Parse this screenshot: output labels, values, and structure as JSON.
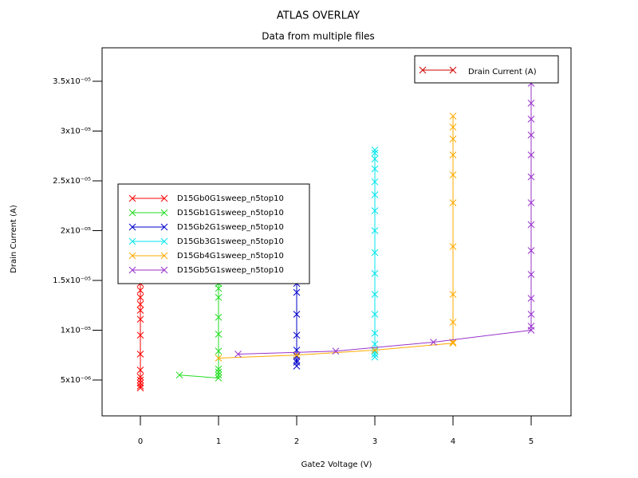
{
  "chart_data": {
    "type": "line",
    "title": "ATLAS OVERLAY",
    "subtitle": "Data from multiple files",
    "x_label": "Gate2 Voltage (V)",
    "y_label": "Drain Current (A)",
    "legend2_label": "Drain Current (A)",
    "legend2_color": "#d00000",
    "xlim": [
      -0.49,
      5.51
    ],
    "ylim": [
      1.4e-06,
      3.836e-05
    ],
    "xticks": [
      0,
      1,
      2,
      3,
      4,
      5
    ],
    "yticks": [
      {
        "value": 5e-06,
        "label": "5x10⁻⁰⁶"
      },
      {
        "value": 1e-05,
        "label": "1x10⁻⁰⁵"
      },
      {
        "value": 1.5e-05,
        "label": "1.5x10⁻⁰⁵"
      },
      {
        "value": 2e-05,
        "label": "2x10⁻⁰⁵"
      },
      {
        "value": 2.5e-05,
        "label": "2.5x10⁻⁰⁵"
      },
      {
        "value": 3e-05,
        "label": "3x10⁻⁰⁵"
      },
      {
        "value": 3.5e-05,
        "label": "3.5x10⁻⁰⁵"
      }
    ],
    "series": [
      {
        "name": "D15Gb0G1sweep_n5top10",
        "color": "#ff0000",
        "x": [
          0,
          0,
          0,
          0,
          0,
          0,
          0,
          0,
          0,
          0,
          0,
          0,
          0,
          0
        ],
        "values": [
          4.2e-06,
          4.4e-06,
          4.7e-06,
          5e-06,
          5.3e-06,
          6e-06,
          7.6e-06,
          9.5e-06,
          1.11e-05,
          1.2e-05,
          1.26e-05,
          1.33e-05,
          1.4e-05,
          1.47e-05
        ]
      },
      {
        "name": "D15Gb1G1sweep_n5top10",
        "color": "#22dd22",
        "x": [
          0.5,
          1,
          1,
          1,
          1,
          1,
          1,
          1,
          1,
          1,
          1
        ],
        "values": [
          5.5e-06,
          5.2e-06,
          5.5e-06,
          5.8e-06,
          6.1e-06,
          7.9e-06,
          9.6e-06,
          1.13e-05,
          1.33e-05,
          1.42e-05,
          1.47e-05
        ]
      },
      {
        "name": "D15Gb2G1sweep_n5top10",
        "color": "#0000cc",
        "x": [
          2,
          2,
          2,
          2,
          2,
          2,
          2,
          2,
          2
        ],
        "values": [
          6.4e-06,
          6.8e-06,
          7e-06,
          7.4e-06,
          8e-06,
          9.5e-06,
          1.16e-05,
          1.38e-05,
          1.47e-05
        ]
      },
      {
        "name": "D15Gb3G1sweep_n5top10",
        "color": "#00e5ee",
        "x": [
          3,
          3,
          3,
          3,
          3,
          3,
          3,
          3,
          3,
          3,
          3,
          3,
          3,
          3,
          3,
          3,
          3
        ],
        "values": [
          7.3e-06,
          7.6e-06,
          7.9e-06,
          8.6e-06,
          9.7e-06,
          1.16e-05,
          1.36e-05,
          1.57e-05,
          1.78e-05,
          2e-05,
          2.2e-05,
          2.36e-05,
          2.49e-05,
          2.62e-05,
          2.72e-05,
          2.78e-05,
          2.81e-05
        ]
      },
      {
        "name": "D15Gb4G1sweep_n5top10",
        "color": "#ffaa00",
        "x": [
          1,
          2,
          3,
          4,
          4,
          4,
          4,
          4,
          4,
          4,
          4,
          4,
          4,
          4
        ],
        "values": [
          7.2e-06,
          7.5e-06,
          8e-06,
          8.7e-06,
          8.8e-06,
          1.08e-05,
          1.36e-05,
          1.84e-05,
          2.28e-05,
          2.56e-05,
          2.76e-05,
          2.92e-05,
          3.04e-05,
          3.15e-05
        ]
      },
      {
        "name": "D15Gb5G1sweep_n5top10",
        "color": "#9933cc",
        "x": [
          1.25,
          2.5,
          3.75,
          5,
          5,
          5,
          5,
          5,
          5,
          5,
          5,
          5,
          5,
          5,
          5,
          5,
          5
        ],
        "values": [
          7.6e-06,
          7.9e-06,
          8.8e-06,
          1e-05,
          1.04e-05,
          1.16e-05,
          1.32e-05,
          1.56e-05,
          1.8e-05,
          2.06e-05,
          2.28e-05,
          2.54e-05,
          2.76e-05,
          2.96e-05,
          3.12e-05,
          3.28e-05,
          3.48e-05
        ]
      }
    ]
  }
}
